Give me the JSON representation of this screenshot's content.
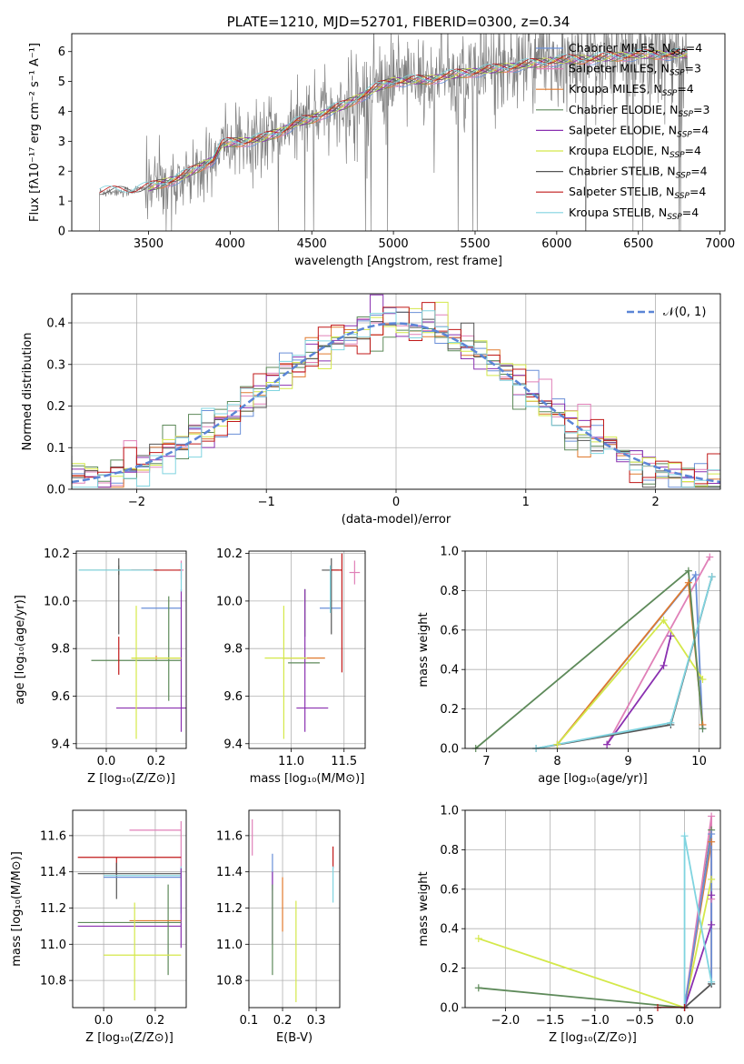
{
  "colors": {
    "Chabrier MILES": "#6a8fd8",
    "Salpeter MILES": "#e080b8",
    "Kroupa MILES": "#e07a2e",
    "Chabrier ELODIE": "#5e8a5a",
    "Salpeter ELODIE": "#8a30b0",
    "Kroupa ELODIE": "#d4e84a",
    "Chabrier STELIB": "#555555",
    "Salpeter STELIB": "#c01818",
    "Kroupa STELIB": "#80d4e0",
    "data": "#808080",
    "normal": "#5b85d6"
  },
  "chart_data": [
    {
      "id": "spectrum",
      "type": "line",
      "title": "PLATE=1210, MJD=52701, FIBERID=0300, z=0.34",
      "xlabel": "wavelength [Angstrom, rest frame]",
      "ylabel": "Flux [f_λ 10^-17 erg cm^-2 s^-1 A^-1]",
      "xlim": [
        3030,
        7030
      ],
      "ylim": [
        0,
        6.6
      ],
      "xticks": [
        "3500",
        "4000",
        "4500",
        "5000",
        "5500",
        "6000",
        "6500",
        "7000"
      ],
      "yticks": [
        "0",
        "1",
        "2",
        "3",
        "4",
        "5",
        "6"
      ],
      "grid": false,
      "legend_position": "top-right",
      "legend": [
        {
          "name": "Chabrier MILES",
          "nssp": "4"
        },
        {
          "name": "Salpeter MILES",
          "nssp": "3"
        },
        {
          "name": "Kroupa MILES",
          "nssp": "4"
        },
        {
          "name": "Chabrier ELODIE",
          "nssp": "3"
        },
        {
          "name": "Salpeter ELODIE",
          "nssp": "4"
        },
        {
          "name": "Kroupa ELODIE",
          "nssp": "4"
        },
        {
          "name": "Chabrier STELIB",
          "nssp": "4"
        },
        {
          "name": "Salpeter STELIB",
          "nssp": "4"
        },
        {
          "name": "Kroupa STELIB",
          "nssp": "4"
        }
      ],
      "continuum": {
        "x": [
          3200,
          3400,
          3500,
          3700,
          3900,
          3950,
          4000,
          4100,
          4200,
          4300,
          4400,
          4500,
          4600,
          4700,
          4800,
          4900,
          5000,
          5200,
          5400,
          5600,
          5800,
          6000,
          6200,
          6400,
          6600,
          6800
        ],
        "y": [
          1.3,
          1.35,
          1.45,
          1.8,
          2.4,
          2.9,
          2.95,
          3.0,
          3.1,
          3.3,
          3.6,
          3.75,
          4.0,
          4.2,
          4.5,
          4.8,
          5.0,
          5.05,
          5.25,
          5.4,
          5.55,
          5.7,
          5.75,
          5.85,
          5.9,
          5.9
        ]
      },
      "data_range": [
        3200,
        6800
      ]
    },
    {
      "id": "residuals",
      "type": "histogram",
      "xlabel": "(data-model)/error",
      "ylabel": "Normed distribution",
      "xlim": [
        -2.5,
        2.5
      ],
      "ylim": [
        0,
        0.47
      ],
      "xticks": [
        "−2",
        "−1",
        "0",
        "1",
        "2"
      ],
      "yticks": [
        "0.0",
        "0.1",
        "0.2",
        "0.3",
        "0.4"
      ],
      "grid": true,
      "legend_label": "𝒩(0, 1)",
      "bin_width": 0.1
    },
    {
      "id": "age-vs-z",
      "type": "scatter",
      "xlabel": "Z [log10(Z/Z⊙)]",
      "ylabel": "age  [log10(age/yr)]",
      "xlim": [
        -0.12,
        0.32
      ],
      "ylim": [
        9.38,
        10.21
      ],
      "xticks": [
        "0.0",
        "0.2"
      ],
      "yticks": [
        "9.4",
        "9.6",
        "9.8",
        "10.0",
        "10.2"
      ],
      "points": [
        {
          "s": "Chabrier MILES",
          "x": 0.22,
          "y": 9.97,
          "xe": 0.08,
          "ye": 0.0
        },
        {
          "s": "Salpeter MILES",
          "x": 0.3,
          "y": 10.13,
          "xe": 0.01,
          "ye": 0.04
        },
        {
          "s": "Kroupa MILES",
          "x": 0.2,
          "y": 9.76,
          "xe": 0.1,
          "ye": 0.01
        },
        {
          "s": "Chabrier ELODIE",
          "x": 0.05,
          "y": 10.13,
          "xe": 0.16,
          "ye": 0.02
        },
        {
          "s": "Chabrier ELODIE",
          "x": 0.12,
          "y": 9.75,
          "xe": 0.18,
          "ye": 0.0
        },
        {
          "s": "Chabrier ELODIE",
          "x": 0.25,
          "y": 9.8,
          "xe": 0.0,
          "ye": 0.22
        },
        {
          "s": "Salpeter ELODIE",
          "x": 0.3,
          "y": 9.55,
          "xe": 0.26,
          "ye": 0.0
        },
        {
          "s": "Salpeter ELODIE",
          "x": 0.3,
          "y": 9.75,
          "xe": 0.0,
          "ye": 0.3
        },
        {
          "s": "Kroupa ELODIE",
          "x": 0.12,
          "y": 9.7,
          "xe": 0.0,
          "ye": 0.28
        },
        {
          "s": "Kroupa ELODIE",
          "x": 0.2,
          "y": 9.76,
          "xe": 0.1,
          "ye": 0.0
        },
        {
          "s": "Chabrier STELIB",
          "x": 0.05,
          "y": 10.02,
          "xe": 0.0,
          "ye": 0.16
        },
        {
          "s": "Salpeter STELIB",
          "x": 0.05,
          "y": 9.77,
          "xe": 0.0,
          "ye": 0.08
        },
        {
          "s": "Salpeter STELIB",
          "x": 0.2,
          "y": 10.13,
          "xe": 0.1,
          "ye": 0.0
        },
        {
          "s": "Kroupa STELIB",
          "x": 0.04,
          "y": 10.13,
          "xe": 0.15,
          "ye": 0.0
        },
        {
          "s": "Kroupa STELIB",
          "x": 0.3,
          "y": 10.1,
          "xe": 0.0,
          "ye": 0.06
        }
      ]
    },
    {
      "id": "age-vs-mass",
      "type": "scatter",
      "xlabel": "mass [log10(M/M⊙)]",
      "ylabel": "",
      "xlim": [
        10.6,
        11.7
      ],
      "ylim": [
        9.38,
        10.21
      ],
      "xticks": [
        "11.0",
        "11.5"
      ],
      "yticks": [
        "9.4",
        "9.6",
        "9.8",
        "10.0",
        "10.2"
      ],
      "points": [
        {
          "s": "Chabrier MILES",
          "x": 11.37,
          "y": 9.97,
          "xe": 0.1,
          "ye": 0.0
        },
        {
          "s": "Salpeter MILES",
          "x": 11.6,
          "y": 10.12,
          "xe": 0.05,
          "ye": 0.05
        },
        {
          "s": "Kroupa MILES",
          "x": 11.12,
          "y": 9.76,
          "xe": 0.2,
          "ye": 0.0
        },
        {
          "s": "Chabrier ELODIE",
          "x": 11.12,
          "y": 9.74,
          "xe": 0.15,
          "ye": 0.0
        },
        {
          "s": "Chabrier ELODIE",
          "x": 11.13,
          "y": 9.95,
          "xe": 0.0,
          "ye": 0.1
        },
        {
          "s": "Salpeter ELODIE",
          "x": 11.2,
          "y": 9.55,
          "xe": 0.15,
          "ye": 0.0
        },
        {
          "s": "Salpeter ELODIE",
          "x": 11.13,
          "y": 9.75,
          "xe": 0.0,
          "ye": 0.3
        },
        {
          "s": "Kroupa ELODIE",
          "x": 10.93,
          "y": 9.7,
          "xe": 0.0,
          "ye": 0.28
        },
        {
          "s": "Kroupa ELODIE",
          "x": 10.95,
          "y": 9.76,
          "xe": 0.2,
          "ye": 0.0
        },
        {
          "s": "Chabrier STELIB",
          "x": 11.37,
          "y": 10.13,
          "xe": 0.08,
          "ye": 0.0
        },
        {
          "s": "Chabrier STELIB",
          "x": 11.38,
          "y": 10.02,
          "xe": 0.0,
          "ye": 0.16
        },
        {
          "s": "Salpeter STELIB",
          "x": 11.48,
          "y": 9.95,
          "xe": 0.0,
          "ye": 0.25
        },
        {
          "s": "Salpeter STELIB",
          "x": 11.43,
          "y": 10.13,
          "xe": 0.05,
          "ye": 0.0
        },
        {
          "s": "Kroupa STELIB",
          "x": 11.37,
          "y": 10.05,
          "xe": 0.0,
          "ye": 0.1
        }
      ]
    },
    {
      "id": "mass-weight-vs-age",
      "type": "line",
      "xlabel": "age  [log10(age/yr)]",
      "ylabel": "mass weight",
      "xlim": [
        6.7,
        10.3
      ],
      "ylim": [
        0,
        1
      ],
      "xticks": [
        "7",
        "8",
        "9",
        "10"
      ],
      "yticks": [
        "0.0",
        "0.2",
        "0.4",
        "0.6",
        "0.8",
        "1.0"
      ],
      "grid": true,
      "series": [
        {
          "s": "Chabrier MILES",
          "x": [
            8.0,
            9.95,
            10.05
          ],
          "y": [
            0.02,
            0.88,
            0.1
          ]
        },
        {
          "s": "Salpeter MILES",
          "x": [
            8.7,
            10.15
          ],
          "y": [
            0.02,
            0.97
          ]
        },
        {
          "s": "Kroupa MILES",
          "x": [
            8.0,
            9.85,
            10.05
          ],
          "y": [
            0.02,
            0.84,
            0.12
          ]
        },
        {
          "s": "Salpeter ELODIE",
          "x": [
            8.7,
            9.5,
            9.6
          ],
          "y": [
            0.02,
            0.42,
            0.57
          ]
        },
        {
          "s": "Kroupa ELODIE",
          "x": [
            8.0,
            9.5,
            10.05
          ],
          "y": [
            0.02,
            0.65,
            0.35
          ]
        },
        {
          "s": "Chabrier STELIB",
          "x": [
            7.7,
            9.6,
            10.18
          ],
          "y": [
            0.0,
            0.12,
            0.87
          ]
        },
        {
          "s": "Kroupa STELIB",
          "x": [
            7.7,
            9.6,
            10.18
          ],
          "y": [
            0.0,
            0.13,
            0.87
          ]
        },
        {
          "s": "Chabrier ELODIE",
          "x": [
            6.85,
            9.85,
            10.05
          ],
          "y": [
            0.0,
            0.9,
            0.1
          ]
        }
      ]
    },
    {
      "id": "mass-vs-z",
      "type": "scatter",
      "xlabel": "Z [log10(Z/Z⊙)]",
      "ylabel": "mass [log10(M/M⊙)]",
      "xlim": [
        -0.12,
        0.32
      ],
      "ylim": [
        10.65,
        11.74
      ],
      "xticks": [
        "0.0",
        "0.2"
      ],
      "yticks": [
        "10.8",
        "11.0",
        "11.2",
        "11.4",
        "11.6"
      ],
      "points": [
        {
          "s": "Salpeter MILES",
          "x": 0.2,
          "y": 11.63,
          "xe": 0.1,
          "ye": 0.0
        },
        {
          "s": "Salpeter MILES",
          "x": 0.3,
          "y": 11.5,
          "xe": 0.0,
          "ye": 0.18
        },
        {
          "s": "Salpeter STELIB",
          "x": 0.1,
          "y": 11.48,
          "xe": 0.2,
          "ye": 0.0
        },
        {
          "s": "Salpeter STELIB",
          "x": 0.05,
          "y": 11.43,
          "xe": 0.0,
          "ye": 0.05
        },
        {
          "s": "Chabrier STELIB",
          "x": 0.1,
          "y": 11.39,
          "xe": 0.2,
          "ye": 0.0
        },
        {
          "s": "Chabrier STELIB",
          "x": 0.05,
          "y": 11.35,
          "xe": 0.0,
          "ye": 0.1
        },
        {
          "s": "Chabrier MILES",
          "x": 0.15,
          "y": 11.37,
          "xe": 0.15,
          "ye": 0.0
        },
        {
          "s": "Kroupa STELIB",
          "x": 0.15,
          "y": 11.38,
          "xe": 0.15,
          "ye": 0.0
        },
        {
          "s": "Kroupa STELIB",
          "x": 0.3,
          "y": 11.3,
          "xe": 0.0,
          "ye": 0.13
        },
        {
          "s": "Salpeter ELODIE",
          "x": 0.3,
          "y": 11.2,
          "xe": 0.0,
          "ye": 0.22
        },
        {
          "s": "Salpeter ELODIE",
          "x": 0.1,
          "y": 11.1,
          "xe": 0.2,
          "ye": 0.0
        },
        {
          "s": "Chabrier ELODIE",
          "x": 0.1,
          "y": 11.12,
          "xe": 0.2,
          "ye": 0.0
        },
        {
          "s": "Chabrier ELODIE",
          "x": 0.25,
          "y": 11.08,
          "xe": 0.0,
          "ye": 0.25
        },
        {
          "s": "Kroupa MILES",
          "x": 0.2,
          "y": 11.13,
          "xe": 0.1,
          "ye": 0.0
        },
        {
          "s": "Kroupa ELODIE",
          "x": 0.12,
          "y": 10.96,
          "xe": 0.0,
          "ye": 0.27
        },
        {
          "s": "Kroupa ELODIE",
          "x": 0.15,
          "y": 10.94,
          "xe": 0.15,
          "ye": 0.0
        }
      ]
    },
    {
      "id": "mass-vs-ebv",
      "type": "scatter",
      "xlabel": "E(B-V)",
      "ylabel": "",
      "xlim": [
        0.1,
        0.37
      ],
      "ylim": [
        10.65,
        11.74
      ],
      "xticks": [
        "0.1",
        "0.2",
        "0.3"
      ],
      "yticks": [
        "10.8",
        "11.0",
        "11.2",
        "11.4",
        "11.6"
      ],
      "points": [
        {
          "s": "Salpeter MILES",
          "x": 0.11,
          "y": 11.59,
          "xe": 0.0,
          "ye": 0.1
        },
        {
          "s": "Chabrier MILES",
          "x": 0.17,
          "y": 11.4,
          "xe": 0.0,
          "ye": 0.1
        },
        {
          "s": "Salpeter ELODIE",
          "x": 0.17,
          "y": 11.2,
          "xe": 0.0,
          "ye": 0.2
        },
        {
          "s": "Chabrier ELODIE",
          "x": 0.17,
          "y": 11.08,
          "xe": 0.0,
          "ye": 0.25
        },
        {
          "s": "Kroupa MILES",
          "x": 0.2,
          "y": 11.22,
          "xe": 0.0,
          "ye": 0.15
        },
        {
          "s": "Kroupa ELODIE",
          "x": 0.24,
          "y": 10.96,
          "xe": 0.0,
          "ye": 0.28
        },
        {
          "s": "Salpeter STELIB",
          "x": 0.35,
          "y": 11.48,
          "xe": 0.0,
          "ye": 0.06
        },
        {
          "s": "Kroupa STELIB",
          "x": 0.35,
          "y": 11.33,
          "xe": 0.0,
          "ye": 0.1
        }
      ]
    },
    {
      "id": "mass-weight-vs-z",
      "type": "line",
      "xlabel": "Z [log10(Z/Z⊙)]",
      "ylabel": "mass weight",
      "xlim": [
        -2.45,
        0.4
      ],
      "ylim": [
        0,
        1
      ],
      "xticks": [
        "−2.0",
        "−1.5",
        "−1.0",
        "−0.5",
        "0.0"
      ],
      "yticks": [
        "0.0",
        "0.2",
        "0.4",
        "0.6",
        "0.8",
        "1.0"
      ],
      "grid": true,
      "series": [
        {
          "s": "Kroupa ELODIE",
          "x": [
            -2.3,
            0.0,
            0.3
          ],
          "y": [
            0.35,
            0.0,
            0.65
          ]
        },
        {
          "s": "Chabrier ELODIE",
          "x": [
            -2.3,
            0.0,
            0.3
          ],
          "y": [
            0.1,
            0.0,
            0.9
          ]
        },
        {
          "s": "Salpeter MILES",
          "x": [
            0.0,
            0.3,
            0.3
          ],
          "y": [
            0.0,
            0.97,
            0.55
          ]
        },
        {
          "s": "Kroupa MILES",
          "x": [
            0.0,
            0.3,
            0.3
          ],
          "y": [
            0.0,
            0.84,
            0.12
          ]
        },
        {
          "s": "Salpeter ELODIE",
          "x": [
            0.0,
            0.3,
            0.3
          ],
          "y": [
            0.0,
            0.42,
            0.57
          ]
        },
        {
          "s": "Chabrier MILES",
          "x": [
            0.0,
            0.3,
            0.3
          ],
          "y": [
            0.0,
            0.88,
            0.12
          ]
        },
        {
          "s": "Chabrier STELIB",
          "x": [
            0.0,
            0.3
          ],
          "y": [
            0.0,
            0.12
          ]
        },
        {
          "s": "Kroupa STELIB",
          "x": [
            0.0,
            0.0,
            0.3
          ],
          "y": [
            0.0,
            0.87,
            0.13
          ]
        },
        {
          "s": "Salpeter STELIB",
          "x": [
            -0.3,
            0.0
          ],
          "y": [
            0.0,
            0.0
          ]
        }
      ]
    }
  ]
}
